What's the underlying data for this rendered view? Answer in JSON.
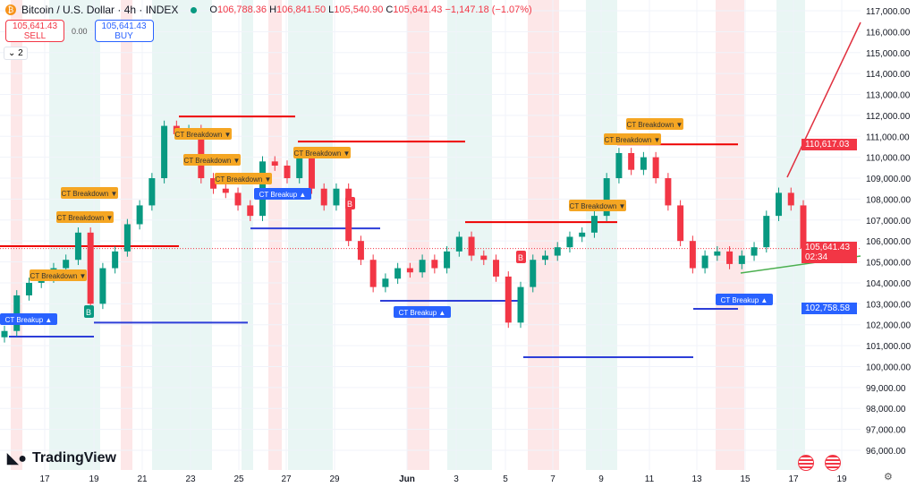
{
  "header": {
    "title": "Bitcoin / U.S. Dollar · 4h · INDEX",
    "open_label": "O",
    "open": "106,788.36",
    "high_label": "H",
    "high": "106,841.50",
    "low_label": "L",
    "low": "105,540.90",
    "close_label": "C",
    "close": "105,641.43",
    "change": "−1,147.18 (−1.07%)"
  },
  "trade": {
    "sell_price": "105,641.43",
    "sell_label": "SELL",
    "spread": "0.00",
    "buy_price": "105,641.43",
    "buy_label": "BUY"
  },
  "indicators_toggle": "2",
  "logo": "TradingView",
  "colors": {
    "up": "#089981",
    "down": "#f23645",
    "support": "#2962ff",
    "signal": "#f5a623"
  },
  "price_tags": {
    "last": "105,641.43",
    "countdown": "02:34",
    "resistance": "110,617.03",
    "support": "102,758.58"
  },
  "labels": {
    "breakdown": "CT Breakdown ▼",
    "breakup": "CT Breakup ▲",
    "buy": "B"
  },
  "chart_data": {
    "type": "candlestick",
    "ylim": [
      95500,
      117400
    ],
    "y_ticks": [
      "117,000.00",
      "116,000.00",
      "115,000.00",
      "114,000.00",
      "113,000.00",
      "112,000.00",
      "111,000.00",
      "110,000.00",
      "109,000.00",
      "108,000.00",
      "107,000.00",
      "106,000.00",
      "105,000.00",
      "104,000.00",
      "103,000.00",
      "102,000.00",
      "101,000.00",
      "100,000.00",
      "99,000.00",
      "98,000.00",
      "97,000.00",
      "96,000.00"
    ],
    "x_ticks": [
      "17",
      "19",
      "21",
      "23",
      "25",
      "27",
      "29",
      "Jun",
      "3",
      "5",
      "7",
      "9",
      "11",
      "13",
      "15",
      "17",
      "19"
    ],
    "close": [
      101700,
      103400,
      104000,
      104250,
      104700,
      105100,
      106400,
      103000,
      104700,
      105500,
      106800,
      107700,
      109000,
      111500,
      111100,
      111300,
      109000,
      108500,
      108300,
      107700,
      107200,
      109800,
      109600,
      109000,
      110000,
      108500,
      107700,
      108500,
      106000,
      105100,
      103800,
      104200,
      104700,
      104500,
      105100,
      104700,
      105500,
      106200,
      105300,
      105100,
      104300,
      102100,
      103800,
      105100,
      105300,
      105700,
      106200,
      106400,
      107200,
      109000,
      110200,
      109400,
      110000,
      109000,
      107700,
      106000,
      104700,
      105300,
      105500,
      104900,
      105300,
      105700,
      107200,
      108300,
      107700,
      105641
    ],
    "resistance_levels": [
      111950,
      110750,
      105750,
      106900,
      110617.03
    ],
    "support_levels": [
      101430,
      102100,
      106600,
      103140,
      100450,
      102758.58
    ]
  }
}
